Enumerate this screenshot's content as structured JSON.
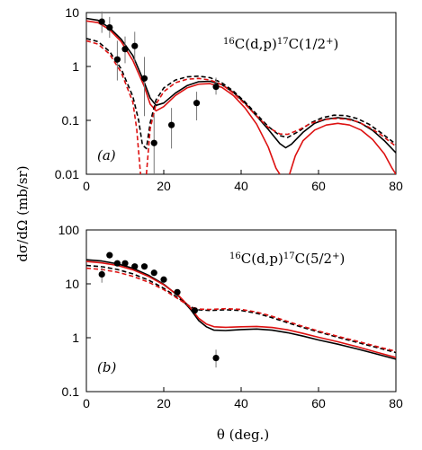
{
  "chart_data": [
    {
      "type": "line",
      "panel_label": "(a)",
      "annotation": {
        "sup1": "16",
        "body": "C(d,p)",
        "sup2": "17",
        "tail": "C(1/2",
        "sup3": "+",
        "end": ")"
      },
      "xlim": [
        0,
        80
      ],
      "ylim": [
        0.01,
        10
      ],
      "yscale": "log",
      "x_ticks": [
        "0",
        "20",
        "40",
        "60",
        "80"
      ],
      "y_ticks": [
        "0.01",
        "0.1",
        "1",
        "10"
      ],
      "y_tick_values": [
        0.01,
        0.1,
        1,
        10
      ],
      "series": [
        {
          "style": "solid",
          "color": "#000000",
          "points": [
            [
              0,
              7.8
            ],
            [
              3,
              7.2
            ],
            [
              6,
              5.2
            ],
            [
              9,
              3.2
            ],
            [
              12,
              1.6
            ],
            [
              15,
              0.5
            ],
            [
              16.5,
              0.26
            ],
            [
              18,
              0.19
            ],
            [
              20,
              0.21
            ],
            [
              23,
              0.32
            ],
            [
              26,
              0.44
            ],
            [
              29,
              0.52
            ],
            [
              32,
              0.53
            ],
            [
              35,
              0.46
            ],
            [
              38,
              0.33
            ],
            [
              41,
              0.21
            ],
            [
              44,
              0.12
            ],
            [
              47,
              0.068
            ],
            [
              50,
              0.037
            ],
            [
              51.5,
              0.031
            ],
            [
              53,
              0.036
            ],
            [
              56,
              0.06
            ],
            [
              59,
              0.088
            ],
            [
              62,
              0.106
            ],
            [
              65,
              0.112
            ],
            [
              68,
              0.106
            ],
            [
              71,
              0.088
            ],
            [
              74,
              0.065
            ],
            [
              77,
              0.042
            ],
            [
              80,
              0.025
            ]
          ]
        },
        {
          "style": "solid",
          "color": "#dd1111",
          "points": [
            [
              0,
              7.0
            ],
            [
              3,
              6.5
            ],
            [
              6,
              4.8
            ],
            [
              9,
              2.9
            ],
            [
              12,
              1.3
            ],
            [
              15,
              0.42
            ],
            [
              16.5,
              0.2
            ],
            [
              18,
              0.15
            ],
            [
              20,
              0.18
            ],
            [
              23,
              0.29
            ],
            [
              26,
              0.4
            ],
            [
              29,
              0.47
            ],
            [
              32,
              0.48
            ],
            [
              35,
              0.41
            ],
            [
              38,
              0.29
            ],
            [
              41,
              0.17
            ],
            [
              44,
              0.085
            ],
            [
              47,
              0.032
            ],
            [
              49,
              0.013
            ],
            [
              50,
              0.01
            ]
          ]
        },
        {
          "style": "solid",
          "color": "#dd1111",
          "points": [
            [
              52.5,
              0.01
            ],
            [
              54,
              0.022
            ],
            [
              56,
              0.042
            ],
            [
              59,
              0.066
            ],
            [
              62,
              0.082
            ],
            [
              65,
              0.088
            ],
            [
              68,
              0.082
            ],
            [
              71,
              0.066
            ],
            [
              74,
              0.044
            ],
            [
              77,
              0.024
            ],
            [
              79,
              0.013
            ],
            [
              80,
              0.01
            ]
          ]
        },
        {
          "style": "dashed",
          "color": "#000000",
          "points": [
            [
              0,
              3.3
            ],
            [
              3,
              2.9
            ],
            [
              6,
              1.9
            ],
            [
              9,
              0.9
            ],
            [
              12,
              0.28
            ],
            [
              13.5,
              0.1
            ],
            [
              14.5,
              0.035
            ],
            [
              15.5,
              0.03
            ],
            [
              16.5,
              0.09
            ],
            [
              18,
              0.24
            ],
            [
              20,
              0.4
            ],
            [
              23,
              0.56
            ],
            [
              26,
              0.64
            ],
            [
              29,
              0.66
            ],
            [
              32,
              0.62
            ],
            [
              35,
              0.5
            ],
            [
              38,
              0.35
            ],
            [
              41,
              0.22
            ],
            [
              44,
              0.13
            ],
            [
              47,
              0.077
            ],
            [
              50,
              0.052
            ],
            [
              52,
              0.048
            ],
            [
              55,
              0.063
            ],
            [
              58,
              0.09
            ],
            [
              61,
              0.112
            ],
            [
              64,
              0.125
            ],
            [
              67,
              0.123
            ],
            [
              70,
              0.108
            ],
            [
              73,
              0.085
            ],
            [
              76,
              0.06
            ],
            [
              80,
              0.036
            ]
          ]
        },
        {
          "style": "dashed",
          "color": "#dd1111",
          "points": [
            [
              0,
              3.0
            ],
            [
              3,
              2.6
            ],
            [
              6,
              1.7
            ],
            [
              9,
              0.78
            ],
            [
              12,
              0.22
            ],
            [
              13,
              0.07
            ],
            [
              14,
              0.01
            ]
          ]
        },
        {
          "style": "dashed",
          "color": "#dd1111",
          "points": [
            [
              15.5,
              0.01
            ],
            [
              16.5,
              0.07
            ],
            [
              18,
              0.2
            ],
            [
              20,
              0.34
            ],
            [
              23,
              0.5
            ],
            [
              26,
              0.58
            ],
            [
              29,
              0.6
            ],
            [
              32,
              0.56
            ],
            [
              35,
              0.46
            ],
            [
              38,
              0.32
            ],
            [
              41,
              0.2
            ],
            [
              44,
              0.12
            ],
            [
              47,
              0.074
            ],
            [
              50,
              0.056
            ],
            [
              52,
              0.055
            ],
            [
              55,
              0.067
            ],
            [
              58,
              0.088
            ],
            [
              61,
              0.102
            ],
            [
              64,
              0.108
            ],
            [
              67,
              0.106
            ],
            [
              70,
              0.095
            ],
            [
              73,
              0.075
            ],
            [
              76,
              0.055
            ],
            [
              80,
              0.033
            ]
          ]
        }
      ],
      "experimental": [
        {
          "x": 4,
          "y": 6.8,
          "lo": 4.2,
          "hi": 10.5
        },
        {
          "x": 6,
          "y": 5.3,
          "lo": 3.4,
          "hi": 8.3
        },
        {
          "x": 8,
          "y": 1.35,
          "lo": 0.55,
          "hi": 3.0
        },
        {
          "x": 10,
          "y": 2.1,
          "lo": 1.15,
          "hi": 3.6
        },
        {
          "x": 12.5,
          "y": 2.4,
          "lo": 1.2,
          "hi": 4.4
        },
        {
          "x": 15,
          "y": 0.6,
          "lo": 0.12,
          "hi": 1.5
        },
        {
          "x": 17.5,
          "y": 0.038,
          "lo": 0.01,
          "hi": 0.13
        },
        {
          "x": 22,
          "y": 0.082,
          "lo": 0.03,
          "hi": 0.17
        },
        {
          "x": 28.5,
          "y": 0.21,
          "lo": 0.1,
          "hi": 0.34
        },
        {
          "x": 33.5,
          "y": 0.42,
          "lo": 0.3,
          "hi": 0.62
        }
      ]
    },
    {
      "type": "line",
      "panel_label": "(b)",
      "annotation": {
        "sup1": "16",
        "body": "C(d,p)",
        "sup2": "17",
        "tail": "C(5/2",
        "sup3": "+",
        "end": ")"
      },
      "xlim": [
        0,
        80
      ],
      "ylim": [
        0.1,
        100
      ],
      "yscale": "log",
      "x_ticks": [
        "0",
        "20",
        "40",
        "60",
        "80"
      ],
      "y_ticks": [
        "0.1",
        "1",
        "10",
        "100"
      ],
      "y_tick_values": [
        0.1,
        1,
        10,
        100
      ],
      "x_label": "θ (deg.)",
      "series": [
        {
          "style": "solid",
          "color": "#000000",
          "points": [
            [
              0,
              28
            ],
            [
              4,
              26.5
            ],
            [
              8,
              23.5
            ],
            [
              12,
              19.5
            ],
            [
              16,
              14.5
            ],
            [
              20,
              9.8
            ],
            [
              24,
              5.8
            ],
            [
              27,
              3.3
            ],
            [
              29,
              2.1
            ],
            [
              31,
              1.6
            ],
            [
              33,
              1.38
            ],
            [
              36,
              1.36
            ],
            [
              40,
              1.42
            ],
            [
              44,
              1.45
            ],
            [
              48,
              1.38
            ],
            [
              52,
              1.24
            ],
            [
              56,
              1.07
            ],
            [
              60,
              0.91
            ],
            [
              65,
              0.76
            ],
            [
              70,
              0.62
            ],
            [
              75,
              0.5
            ],
            [
              80,
              0.4
            ]
          ]
        },
        {
          "style": "solid",
          "color": "#dd1111",
          "points": [
            [
              0,
              26
            ],
            [
              4,
              24.5
            ],
            [
              8,
              22
            ],
            [
              12,
              18.3
            ],
            [
              16,
              13.8
            ],
            [
              20,
              9.6
            ],
            [
              24,
              5.9
            ],
            [
              27,
              3.5
            ],
            [
              29,
              2.3
            ],
            [
              31,
              1.8
            ],
            [
              33,
              1.6
            ],
            [
              36,
              1.56
            ],
            [
              40,
              1.6
            ],
            [
              44,
              1.62
            ],
            [
              48,
              1.55
            ],
            [
              52,
              1.4
            ],
            [
              56,
              1.2
            ],
            [
              60,
              1.02
            ],
            [
              65,
              0.84
            ],
            [
              70,
              0.68
            ],
            [
              75,
              0.54
            ],
            [
              80,
              0.43
            ]
          ]
        },
        {
          "style": "dashed",
          "color": "#000000",
          "points": [
            [
              0,
              22
            ],
            [
              4,
              20.8
            ],
            [
              8,
              18.5
            ],
            [
              12,
              15.3
            ],
            [
              16,
              11.8
            ],
            [
              20,
              8.3
            ],
            [
              24,
              5.3
            ],
            [
              27,
              3.7
            ],
            [
              29,
              3.3
            ],
            [
              32,
              3.2
            ],
            [
              36,
              3.3
            ],
            [
              40,
              3.2
            ],
            [
              44,
              2.85
            ],
            [
              48,
              2.35
            ],
            [
              52,
              1.9
            ],
            [
              56,
              1.55
            ],
            [
              60,
              1.28
            ],
            [
              65,
              1.02
            ],
            [
              70,
              0.82
            ],
            [
              75,
              0.66
            ],
            [
              80,
              0.53
            ]
          ]
        },
        {
          "style": "dashed",
          "color": "#dd1111",
          "points": [
            [
              0,
              19.5
            ],
            [
              4,
              18.5
            ],
            [
              8,
              16.5
            ],
            [
              12,
              13.8
            ],
            [
              16,
              10.8
            ],
            [
              20,
              7.8
            ],
            [
              24,
              5.1
            ],
            [
              27,
              3.7
            ],
            [
              29,
              3.4
            ],
            [
              32,
              3.35
            ],
            [
              36,
              3.45
            ],
            [
              40,
              3.35
            ],
            [
              44,
              3.0
            ],
            [
              48,
              2.5
            ],
            [
              52,
              2.0
            ],
            [
              56,
              1.62
            ],
            [
              60,
              1.33
            ],
            [
              65,
              1.06
            ],
            [
              70,
              0.86
            ],
            [
              75,
              0.69
            ],
            [
              80,
              0.56
            ]
          ]
        }
      ],
      "experimental": [
        {
          "x": 4,
          "y": 15,
          "lo": 10.5,
          "hi": 21
        },
        {
          "x": 6,
          "y": 34
        },
        {
          "x": 8,
          "y": 24
        },
        {
          "x": 10,
          "y": 24
        },
        {
          "x": 12.5,
          "y": 21
        },
        {
          "x": 15,
          "y": 21
        },
        {
          "x": 17.5,
          "y": 16
        },
        {
          "x": 20,
          "y": 12
        },
        {
          "x": 23.5,
          "y": 7
        },
        {
          "x": 28,
          "y": 3.2
        },
        {
          "x": 33.5,
          "y": 0.42,
          "lo": 0.28,
          "hi": 0.6
        }
      ]
    }
  ],
  "y_label": "dσ/dΩ (mb/sr)"
}
